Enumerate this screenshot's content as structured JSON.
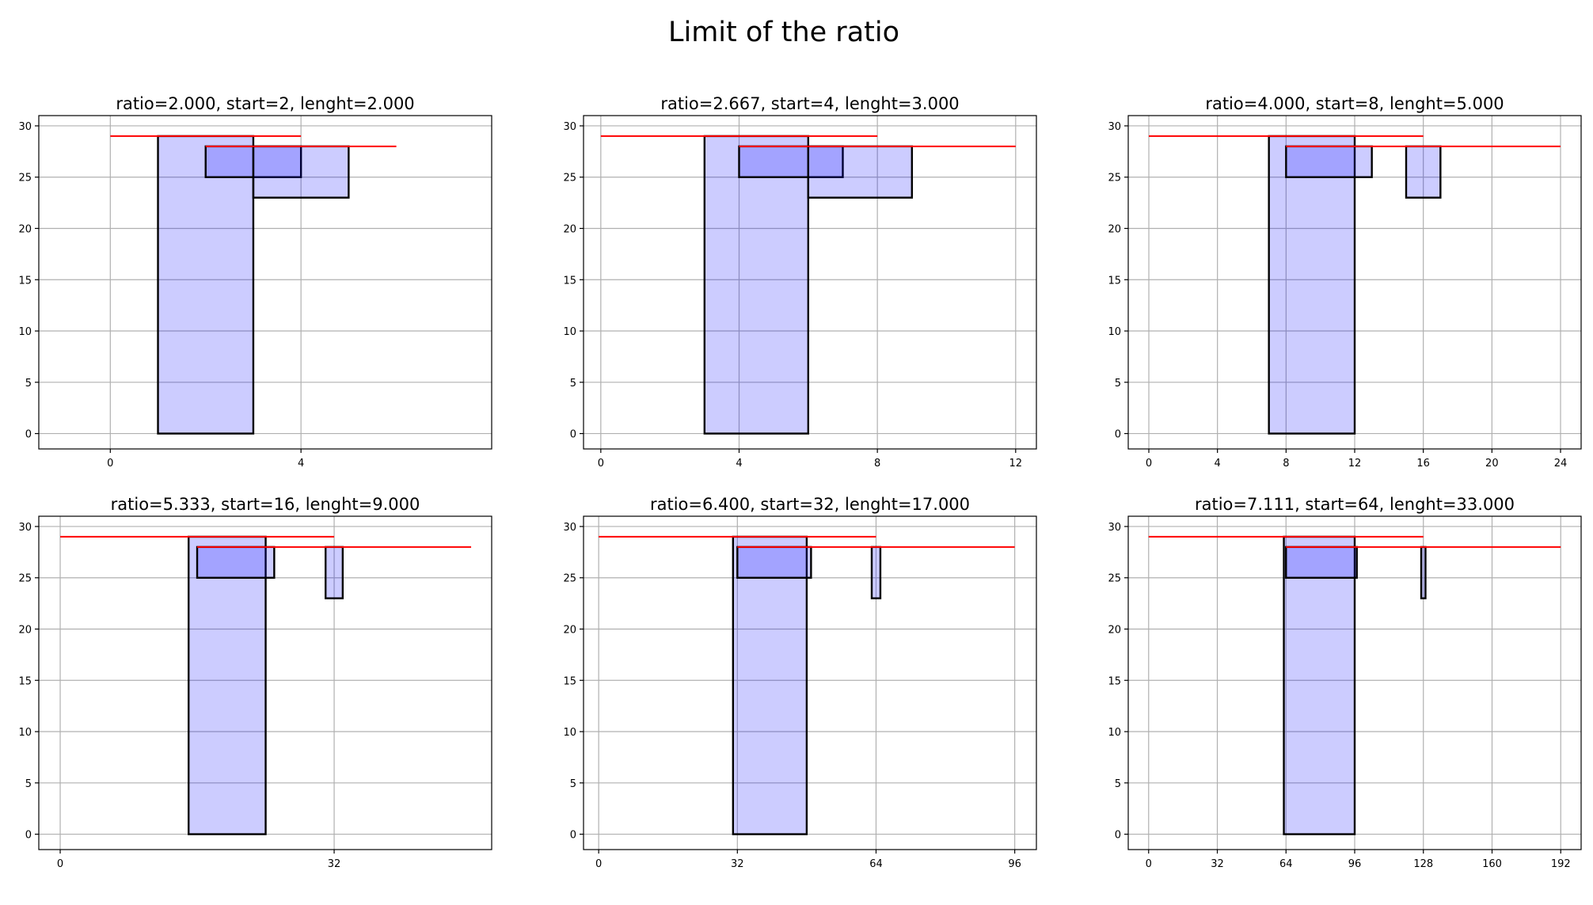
{
  "title": "Limit of the ratio",
  "chart_data": [
    {
      "type": "bar",
      "title": "ratio=2.000, start=2, lenght=2.000",
      "xlim": [
        -1.5,
        8
      ],
      "ylim": [
        -1.5,
        31
      ],
      "xticks": [
        0,
        4
      ],
      "yticks": [
        0,
        5,
        10,
        15,
        20,
        25,
        30
      ],
      "bars": [
        {
          "x0": 1,
          "x1": 3,
          "y0": 0,
          "y1": 29
        },
        {
          "x0": 2,
          "x1": 4,
          "y0": 25,
          "y1": 28
        },
        {
          "x0": 3,
          "x1": 5,
          "y0": 23,
          "y1": 28
        }
      ],
      "lines": [
        {
          "x0": 0,
          "x1": 4,
          "y": 29
        },
        {
          "x0": 2,
          "x1": 6,
          "y": 28
        }
      ]
    },
    {
      "type": "bar",
      "title": "ratio=2.667, start=4, lenght=3.000",
      "xlim": [
        -0.5,
        12.6
      ],
      "ylim": [
        -1.5,
        31
      ],
      "xticks": [
        0,
        4,
        8,
        12
      ],
      "yticks": [
        0,
        5,
        10,
        15,
        20,
        25,
        30
      ],
      "bars": [
        {
          "x0": 3,
          "x1": 6,
          "y0": 0,
          "y1": 29
        },
        {
          "x0": 4,
          "x1": 7,
          "y0": 25,
          "y1": 28
        },
        {
          "x0": 6,
          "x1": 9,
          "y0": 23,
          "y1": 28
        }
      ],
      "lines": [
        {
          "x0": 0,
          "x1": 8,
          "y": 29
        },
        {
          "x0": 4,
          "x1": 12,
          "y": 28
        }
      ]
    },
    {
      "type": "bar",
      "title": "ratio=4.000, start=8, lenght=5.000",
      "xlim": [
        -1.2,
        25.2
      ],
      "ylim": [
        -1.5,
        31
      ],
      "xticks": [
        0,
        4,
        8,
        12,
        16,
        20,
        24
      ],
      "yticks": [
        0,
        5,
        10,
        15,
        20,
        25,
        30
      ],
      "bars": [
        {
          "x0": 7,
          "x1": 12,
          "y0": 0,
          "y1": 29
        },
        {
          "x0": 8,
          "x1": 13,
          "y0": 25,
          "y1": 28
        },
        {
          "x0": 15,
          "x1": 17,
          "y0": 23,
          "y1": 28
        }
      ],
      "lines": [
        {
          "x0": 0,
          "x1": 16,
          "y": 29
        },
        {
          "x0": 8,
          "x1": 24,
          "y": 28
        }
      ]
    },
    {
      "type": "bar",
      "title": "ratio=5.333, start=16, lenght=9.000",
      "xlim": [
        -2.5,
        50.4
      ],
      "ylim": [
        -1.5,
        31
      ],
      "xticks": [
        0,
        32
      ],
      "yticks": [
        0,
        5,
        10,
        15,
        20,
        25,
        30
      ],
      "bars": [
        {
          "x0": 15,
          "x1": 24,
          "y0": 0,
          "y1": 29
        },
        {
          "x0": 16,
          "x1": 25,
          "y0": 25,
          "y1": 28
        },
        {
          "x0": 31,
          "x1": 33,
          "y0": 23,
          "y1": 28
        }
      ],
      "lines": [
        {
          "x0": 0,
          "x1": 32,
          "y": 29
        },
        {
          "x0": 16,
          "x1": 48,
          "y": 28
        }
      ]
    },
    {
      "type": "bar",
      "title": "ratio=6.400, start=32, lenght=17.000",
      "xlim": [
        -3.5,
        101
      ],
      "ylim": [
        -1.5,
        31
      ],
      "xticks": [
        0,
        32,
        64,
        96
      ],
      "yticks": [
        0,
        5,
        10,
        15,
        20,
        25,
        30
      ],
      "bars": [
        {
          "x0": 31,
          "x1": 48,
          "y0": 0,
          "y1": 29
        },
        {
          "x0": 32,
          "x1": 49,
          "y0": 25,
          "y1": 28
        },
        {
          "x0": 63,
          "x1": 65,
          "y0": 23,
          "y1": 28
        }
      ],
      "lines": [
        {
          "x0": 0,
          "x1": 64,
          "y": 29
        },
        {
          "x0": 32,
          "x1": 96,
          "y": 28
        }
      ]
    },
    {
      "type": "bar",
      "title": "ratio=7.111, start=64, lenght=33.000",
      "xlim": [
        -9.5,
        201.5
      ],
      "ylim": [
        -1.5,
        31
      ],
      "xticks": [
        0,
        32,
        64,
        96,
        128,
        160,
        192
      ],
      "yticks": [
        0,
        5,
        10,
        15,
        20,
        25,
        30
      ],
      "bars": [
        {
          "x0": 63,
          "x1": 96,
          "y0": 0,
          "y1": 29
        },
        {
          "x0": 64,
          "x1": 97,
          "y0": 25,
          "y1": 28
        },
        {
          "x0": 127,
          "x1": 129,
          "y0": 23,
          "y1": 28
        }
      ],
      "lines": [
        {
          "x0": 0,
          "x1": 128,
          "y": 29
        },
        {
          "x0": 64,
          "x1": 192,
          "y": 28
        }
      ]
    }
  ]
}
